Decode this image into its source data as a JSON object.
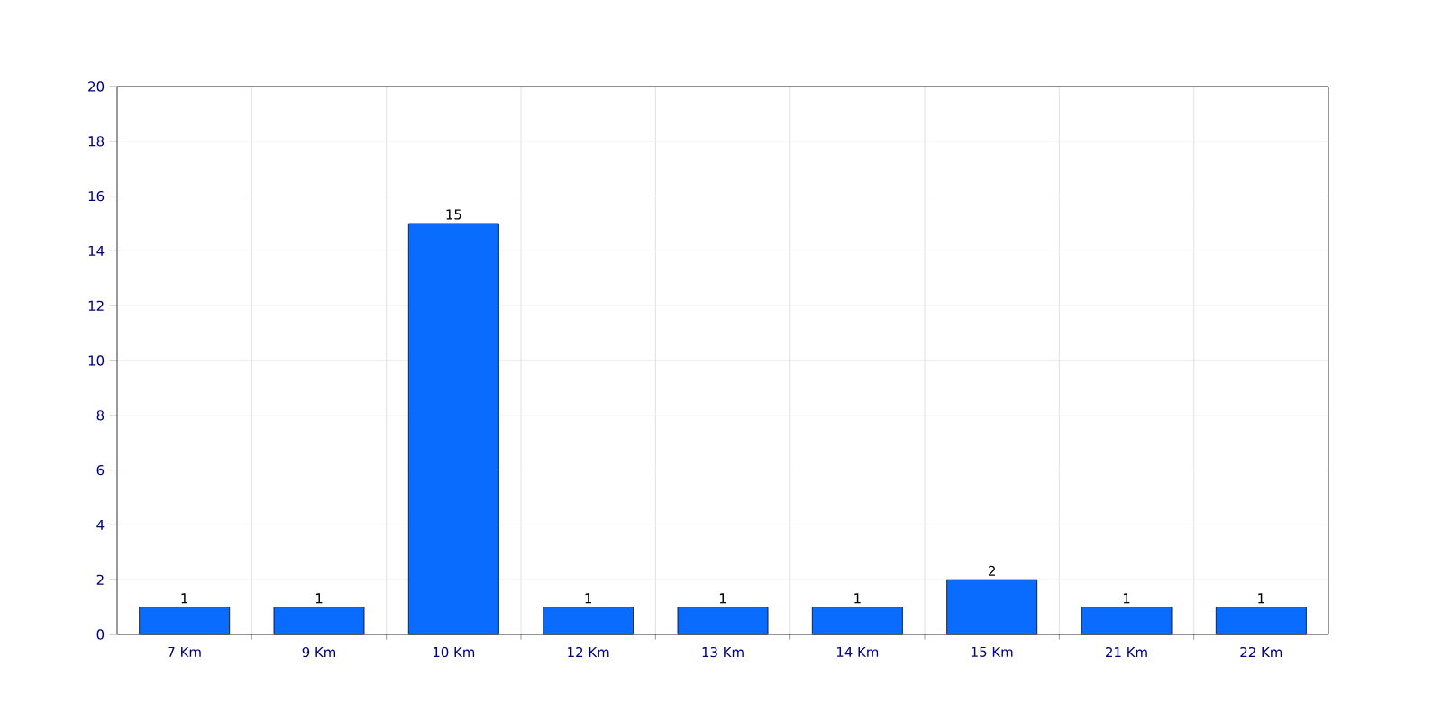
{
  "chart_data": {
    "type": "bar",
    "categories": [
      "7 Km",
      "9 Km",
      "10 Km",
      "12 Km",
      "13 Km",
      "14 Km",
      "15 Km",
      "21 Km",
      "22 Km"
    ],
    "values": [
      1,
      1,
      15,
      1,
      1,
      1,
      2,
      1,
      1
    ],
    "color": "#0a6cff",
    "ylim": [
      0,
      20
    ],
    "yticks": [
      0,
      2,
      4,
      6,
      8,
      10,
      12,
      14,
      16,
      18,
      20
    ],
    "grid": true,
    "data_labels": true
  }
}
